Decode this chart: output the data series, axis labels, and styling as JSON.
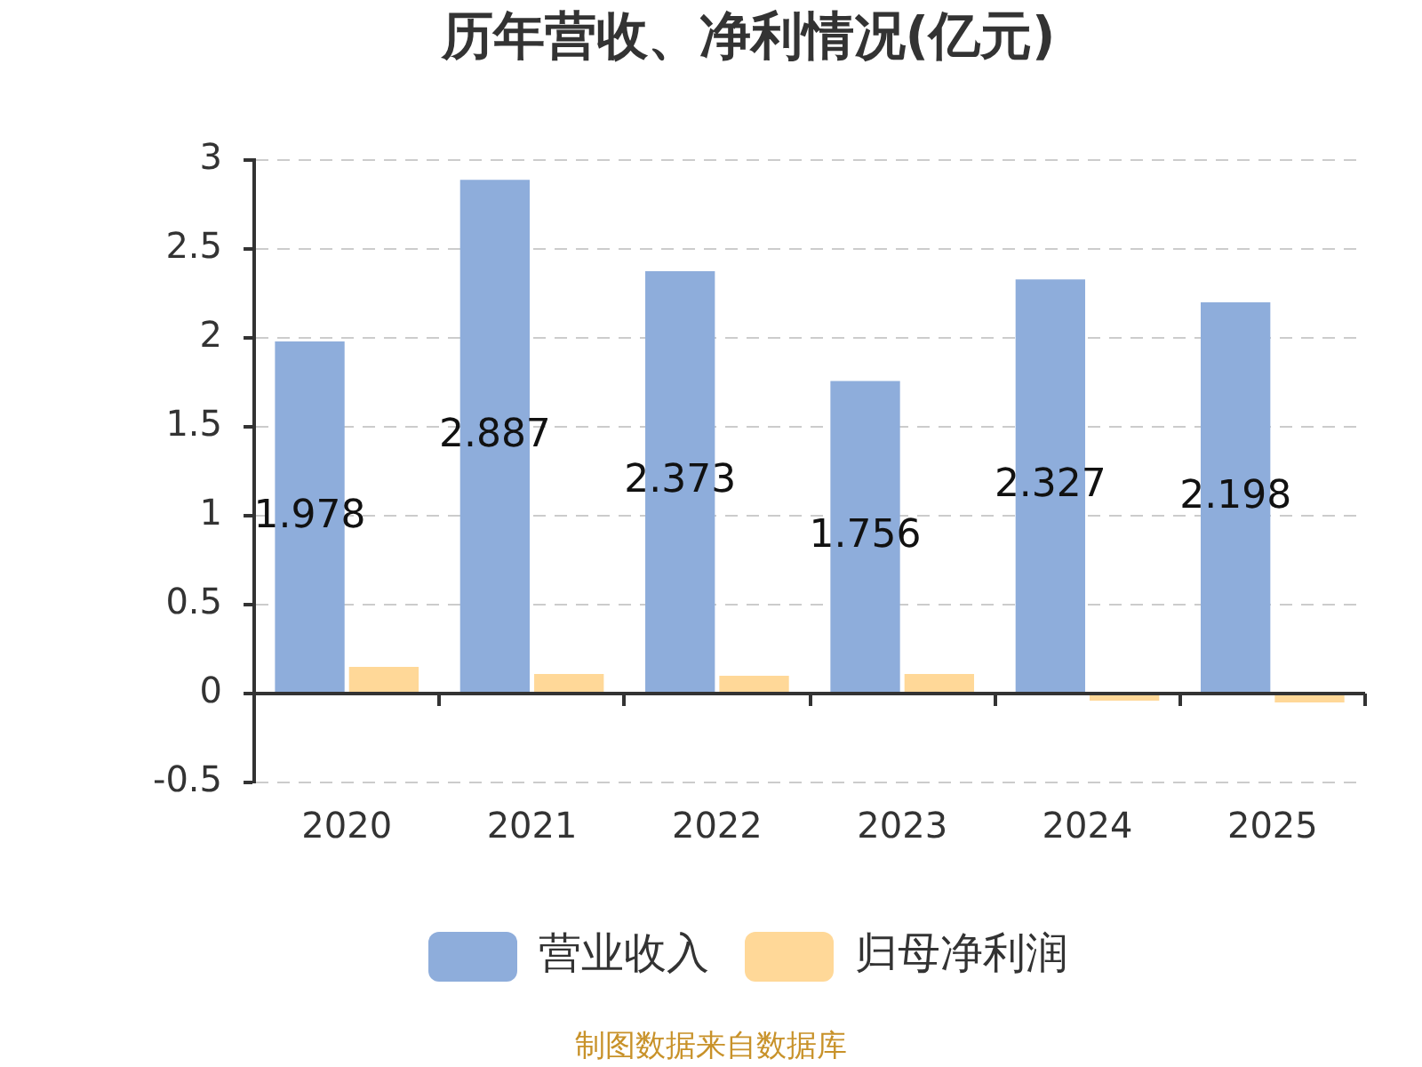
{
  "chart_data": {
    "type": "bar",
    "title": "历年营收、净利情况(亿元)",
    "categories": [
      "2020",
      "2021",
      "2022",
      "2023",
      "2024",
      "2025"
    ],
    "series": [
      {
        "name": "营业收入",
        "color": "#8eaddb",
        "values": [
          1.978,
          2.887,
          2.373,
          1.756,
          2.327,
          2.198
        ],
        "value_labels": [
          "1.978",
          "2.887",
          "2.373",
          "1.756",
          "2.327",
          "2.198"
        ]
      },
      {
        "name": "归母净利润",
        "color": "#ffd898",
        "values": [
          0.15,
          0.11,
          0.1,
          0.11,
          -0.04,
          -0.05
        ]
      }
    ],
    "ylim": [
      -0.5,
      3
    ],
    "yticks": [
      -0.5,
      0,
      0.5,
      1,
      1.5,
      2,
      2.5,
      3
    ],
    "grid": "y",
    "legend": "bottom",
    "annotations": [
      "制图数据来自数据库"
    ]
  }
}
